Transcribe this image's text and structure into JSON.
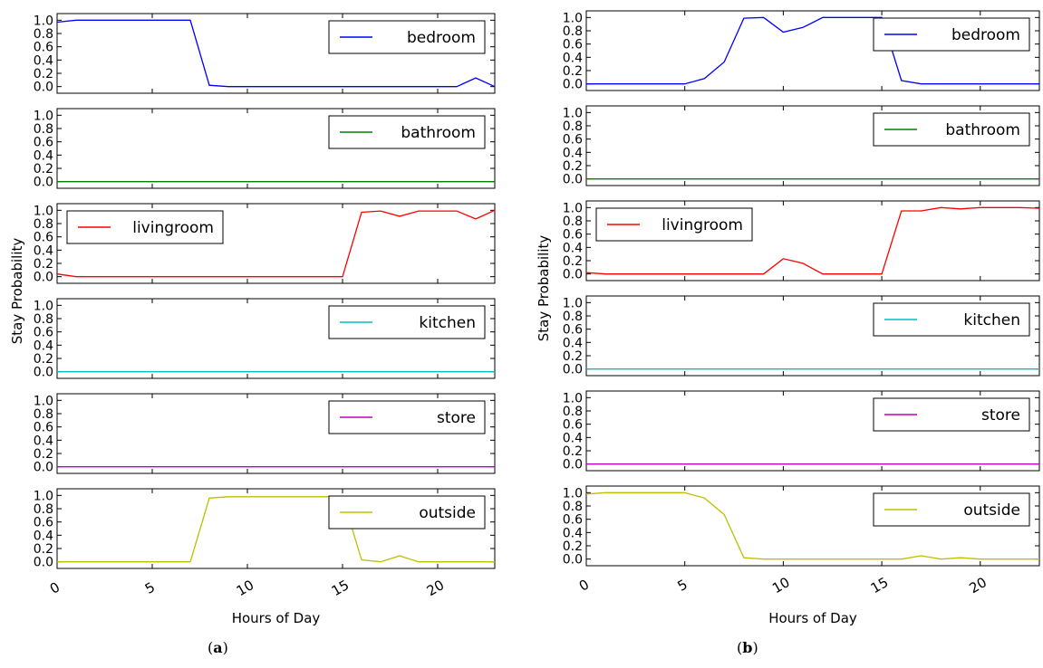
{
  "chart_data": [
    {
      "panel_label": "a",
      "type": "line",
      "ylabel": "Stay Probability",
      "xlabel": "Hours of Day",
      "xlim": [
        0,
        23
      ],
      "ylim": [
        -0.1,
        1.1
      ],
      "xticks": [
        0,
        5,
        10,
        15,
        20
      ],
      "yticks": [
        "0.0",
        "0.2",
        "0.4",
        "0.6",
        "0.8",
        "1.0"
      ],
      "legend_placement": "upper right (livingroom: upper left)",
      "grid": false,
      "x": [
        0,
        1,
        2,
        3,
        4,
        5,
        6,
        7,
        8,
        9,
        10,
        11,
        12,
        13,
        14,
        15,
        16,
        17,
        18,
        19,
        20,
        21,
        22,
        23
      ],
      "subplots": [
        {
          "name": "bedroom",
          "color": "#0000ff",
          "legend_loc": "right",
          "values": [
            0.97,
            1.0,
            1.0,
            1.0,
            1.0,
            1.0,
            1.0,
            1.0,
            0.02,
            0.0,
            0.0,
            0.0,
            0.0,
            0.0,
            0.0,
            0.0,
            0.0,
            0.0,
            0.0,
            0.0,
            0.0,
            0.0,
            0.13,
            0.0
          ]
        },
        {
          "name": "bathroom",
          "color": "#008000",
          "legend_loc": "right",
          "values": [
            0,
            0,
            0,
            0,
            0,
            0,
            0,
            0,
            0,
            0,
            0,
            0,
            0,
            0,
            0,
            0,
            0,
            0,
            0,
            0,
            0,
            0,
            0,
            0
          ]
        },
        {
          "name": "livingroom",
          "color": "#ff0000",
          "legend_loc": "left",
          "values": [
            0.04,
            0.0,
            0.0,
            0.0,
            0.0,
            0.0,
            0.0,
            0.0,
            0.0,
            0.0,
            0.0,
            0.0,
            0.0,
            0.0,
            0.0,
            0.0,
            0.97,
            0.99,
            0.91,
            0.99,
            0.99,
            0.99,
            0.87,
            1.0
          ]
        },
        {
          "name": "kitchen",
          "color": "#00bfbf",
          "legend_loc": "right",
          "values": [
            0,
            0,
            0,
            0,
            0,
            0,
            0,
            0,
            0,
            0,
            0,
            0,
            0,
            0,
            0,
            0,
            0,
            0,
            0,
            0,
            0,
            0,
            0,
            0
          ]
        },
        {
          "name": "store",
          "color": "#bf00bf",
          "legend_loc": "right",
          "values": [
            0,
            0,
            0,
            0,
            0,
            0,
            0,
            0,
            0,
            0,
            0,
            0,
            0,
            0,
            0,
            0,
            0,
            0,
            0,
            0,
            0,
            0,
            0,
            0
          ]
        },
        {
          "name": "outside",
          "color": "#bfbf00",
          "legend_loc": "right",
          "values": [
            0.0,
            0.0,
            0.0,
            0.0,
            0.0,
            0.0,
            0.0,
            0.0,
            0.96,
            0.98,
            0.98,
            0.98,
            0.98,
            0.98,
            0.98,
            0.98,
            0.03,
            0.0,
            0.09,
            0.0,
            0.0,
            0.0,
            0.0,
            0.0
          ]
        }
      ]
    },
    {
      "panel_label": "b",
      "type": "line",
      "ylabel": "Stay Probability",
      "xlabel": "Hours of Day",
      "xlim": [
        0,
        23
      ],
      "ylim": [
        -0.1,
        1.1
      ],
      "xticks": [
        0,
        5,
        10,
        15,
        20
      ],
      "yticks": [
        "0.0",
        "0.2",
        "0.4",
        "0.6",
        "0.8",
        "1.0"
      ],
      "legend_placement": "upper right (livingroom: upper left)",
      "grid": false,
      "x": [
        0,
        1,
        2,
        3,
        4,
        5,
        6,
        7,
        8,
        9,
        10,
        11,
        12,
        13,
        14,
        15,
        16,
        17,
        18,
        19,
        20,
        21,
        22,
        23
      ],
      "subplots": [
        {
          "name": "bedroom",
          "color": "#0000ff",
          "legend_loc": "right",
          "values": [
            0.0,
            0.0,
            0.0,
            0.0,
            0.0,
            0.0,
            0.08,
            0.33,
            0.99,
            1.0,
            0.78,
            0.85,
            1.0,
            1.0,
            1.0,
            1.0,
            0.05,
            0.0,
            0.0,
            0.0,
            0.0,
            0.0,
            0.0,
            0.0
          ]
        },
        {
          "name": "bathroom",
          "color": "#008000",
          "legend_loc": "right",
          "values": [
            0,
            0,
            0,
            0,
            0,
            0,
            0,
            0,
            0,
            0,
            0,
            0,
            0,
            0,
            0,
            0,
            0,
            0,
            0,
            0,
            0,
            0,
            0,
            0
          ]
        },
        {
          "name": "livingroom",
          "color": "#ff0000",
          "legend_loc": "left",
          "values": [
            0.02,
            0.0,
            0.0,
            0.0,
            0.0,
            0.0,
            0.0,
            0.0,
            0.0,
            0.0,
            0.23,
            0.16,
            0.0,
            0.0,
            0.0,
            0.0,
            0.95,
            0.95,
            1.0,
            0.98,
            1.0,
            1.0,
            1.0,
            0.99
          ]
        },
        {
          "name": "kitchen",
          "color": "#00bfbf",
          "legend_loc": "right",
          "values": [
            0,
            0,
            0,
            0,
            0,
            0,
            0,
            0,
            0,
            0,
            0,
            0,
            0,
            0,
            0,
            0,
            0,
            0,
            0,
            0,
            0,
            0,
            0,
            0
          ]
        },
        {
          "name": "store",
          "color": "#bf00bf",
          "legend_loc": "right",
          "values": [
            0,
            0,
            0,
            0,
            0,
            0,
            0,
            0,
            0,
            0,
            0,
            0,
            0,
            0,
            0,
            0,
            0,
            0,
            0,
            0,
            0,
            0,
            0,
            0
          ]
        },
        {
          "name": "outside",
          "color": "#bfbf00",
          "legend_loc": "right",
          "values": [
            0.98,
            1.0,
            1.0,
            1.0,
            1.0,
            1.0,
            0.92,
            0.67,
            0.02,
            0.0,
            0.0,
            0.0,
            0.0,
            0.0,
            0.0,
            0.0,
            0.0,
            0.05,
            0.0,
            0.02,
            0.0,
            0.0,
            0.0,
            0.0
          ]
        }
      ]
    }
  ],
  "captions": {
    "a": {
      "open": "(",
      "letter": "a",
      "close": ")"
    },
    "b": {
      "open": "(",
      "letter": "b",
      "close": ")"
    }
  }
}
